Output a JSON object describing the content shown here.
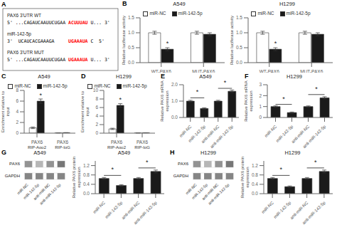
{
  "chart_data": [
    {
      "type": "sequence",
      "panel_label": "A",
      "rows": [
        {
          "label": "PAX6 3'UTR WT",
          "segments": [
            {
              "text": "5' ...CAGAUCAAUUCUGAA",
              "color": "#000000"
            },
            {
              "text": "ACUUUAU",
              "color": "#ff0000"
            },
            {
              "text": "U... 3'",
              "color": "#000000"
            }
          ]
        },
        {
          "label": "miR-142-5p",
          "segments": [
            {
              "text": "3'  UCAUCACGAAAGA",
              "color": "#000000"
            },
            {
              "text": "UGAAAUA",
              "color": "#ff0000"
            },
            {
              "text": "C  5'",
              "color": "#000000"
            }
          ]
        },
        {
          "label": "PAX6 3'UTR MUT",
          "segments": [
            {
              "text": "5' ...CAGAUCAAUUCUGAA",
              "color": "#000000"
            },
            {
              "text": "UGAAAUA",
              "color": "#ff0000"
            },
            {
              "text": "U... 3'",
              "color": "#000000"
            }
          ]
        }
      ]
    },
    {
      "type": "bar",
      "panel_label": "B",
      "title": "A549",
      "categories": [
        "WT-PAX6",
        "MUT-PAX6"
      ],
      "ylabel": "Relative luciferase activity",
      "series": [
        {
          "name": "miR-NC",
          "color": "#ffffff",
          "values": [
            1.0,
            1.0
          ],
          "errors": [
            0.05,
            0.05
          ]
        },
        {
          "name": "miR-142-5p",
          "color": "#1a1a1a",
          "values": [
            0.45,
            0.95
          ],
          "errors": [
            0.05,
            0.05
          ]
        }
      ],
      "ylim": [
        0,
        1.5
      ],
      "yticks": [
        {
          "value": 0,
          "label": "0.0"
        },
        0.5,
        {
          "value": 1,
          "label": "1.0"
        },
        1.5
      ],
      "legend": "top",
      "significance": [
        {
          "category": "WT-PAX6",
          "series": "miR-142-5p",
          "label": "*"
        }
      ]
    },
    {
      "type": "bar",
      "title": "H1299",
      "categories": [
        "WT-PAX6",
        "MUT-PAX6"
      ],
      "ylabel": "Relative luciferase activity",
      "series": [
        {
          "name": "miR-NC",
          "color": "#ffffff",
          "values": [
            1.0,
            1.0
          ],
          "errors": [
            0.05,
            0.05
          ]
        },
        {
          "name": "miR-142-5p",
          "color": "#1a1a1a",
          "values": [
            0.45,
            0.95
          ],
          "errors": [
            0.05,
            0.05
          ]
        }
      ],
      "ylim": [
        0,
        1.5
      ],
      "yticks": [
        {
          "value": 0,
          "label": "0.0"
        },
        0.5,
        {
          "value": 1,
          "label": "1.0"
        },
        1.5
      ],
      "legend": "top",
      "significance": [
        {
          "category": "WT-PAX6",
          "series": "miR-142-5p",
          "label": "*"
        }
      ]
    },
    {
      "type": "bar",
      "panel_label": "C",
      "title": "A549",
      "categories": [
        "PAX6",
        "PAX6"
      ],
      "group_labels": [
        "RIP-Ago2",
        "RIP-IgG"
      ],
      "ylabel": "Enrichment relative to\ninput",
      "series": [
        {
          "name": "miR-NC",
          "color": "#ffffff",
          "values": [
            1.0,
            0.05
          ],
          "errors": [
            0.15,
            0.01
          ]
        },
        {
          "name": "miR-142-5p",
          "color": "#1a1a1a",
          "values": [
            6.0,
            0.08
          ],
          "errors": [
            0.4,
            0.01
          ]
        }
      ],
      "ylim": [
        0,
        8
      ],
      "yticks": [
        0,
        2,
        4,
        6,
        8
      ],
      "legend": "top",
      "significance": [
        {
          "category": "PAX6",
          "series": "miR-142-5p",
          "label": "*"
        }
      ]
    },
    {
      "type": "bar",
      "panel_label": "D",
      "title": "H1299",
      "categories": [
        "PAX6",
        "PAX6"
      ],
      "group_labels": [
        "RIP-Ago2",
        "RIP-IgG"
      ],
      "ylabel": "Enrichment relative to\ninput",
      "series": [
        {
          "name": "miR-NC",
          "color": "#ffffff",
          "values": [
            1.0,
            0.05
          ],
          "errors": [
            0.15,
            0.01
          ]
        },
        {
          "name": "miR-142-5p",
          "color": "#1a1a1a",
          "values": [
            6.5,
            0.08
          ],
          "errors": [
            0.4,
            0.01
          ]
        }
      ],
      "ylim": [
        0,
        10
      ],
      "yticks": [
        0,
        2,
        4,
        6,
        8,
        10
      ],
      "legend": "top",
      "significance": [
        {
          "category": "PAX6",
          "series": "miR-142-5p",
          "label": "*"
        }
      ]
    },
    {
      "type": "bar",
      "panel_label": "E",
      "title": "A549",
      "categories": [
        "miR-NC",
        "miR-142-5p",
        "anti-miR-NC",
        "anti-miR-142-5p"
      ],
      "values": [
        1.0,
        0.55,
        1.0,
        1.6
      ],
      "errors": [
        0.05,
        0.04,
        0.05,
        0.08
      ],
      "color": "#1a1a1a",
      "ylabel": "Relative PAX6 mRNA\nexpression",
      "ylim": [
        0,
        2.0
      ],
      "yticks": [
        {
          "value": 0,
          "label": "0.0"
        },
        0.5,
        {
          "value": 1,
          "label": "1.0"
        },
        1.5,
        {
          "value": 2,
          "label": "2.0"
        }
      ],
      "significance": [
        {
          "from": "miR-NC",
          "to": "miR-142-5p",
          "y": 1.2,
          "label": "*"
        },
        {
          "from": "anti-miR-NC",
          "to": "anti-miR-142-5p",
          "y": 1.78,
          "label": "*"
        }
      ]
    },
    {
      "type": "bar",
      "panel_label": "F",
      "title": "H1299",
      "categories": [
        "miR-NC",
        "miR-142-5p",
        "anti-miR-NC",
        "anti-miR-142-5p"
      ],
      "values": [
        1.0,
        0.45,
        1.0,
        1.8
      ],
      "errors": [
        0.06,
        0.05,
        0.06,
        0.1
      ],
      "color": "#1a1a1a",
      "ylabel": "Relative PAX6 mRNA\nexpression",
      "ylim": [
        0,
        3.0
      ],
      "yticks": [
        0,
        1,
        2,
        3
      ],
      "significance": [
        {
          "from": "miR-NC",
          "to": "miR-142-5p",
          "y": 1.2,
          "label": "*"
        },
        {
          "from": "anti-miR-NC",
          "to": "anti-miR-142-5p",
          "y": 2.1,
          "label": "*"
        }
      ]
    },
    {
      "type": "blot",
      "panel_label": "G",
      "title": "A549",
      "categories": [
        "miR-NC",
        "miR-142-5p",
        "anti-miR-NC",
        "anti-miR-142-5p"
      ],
      "rows": [
        {
          "label": "PAX6",
          "intensities": [
            0.55,
            0.3,
            0.55,
            0.75
          ]
        },
        {
          "label": "GAPDH",
          "intensities": [
            0.65,
            0.65,
            0.65,
            0.65
          ]
        }
      ]
    },
    {
      "type": "bar",
      "title": "A549",
      "categories": [
        "miR-NC",
        "miR-142-5p",
        "anti-miR-NC",
        "anti-miR-142-5p"
      ],
      "values": [
        0.65,
        0.35,
        0.65,
        0.95
      ],
      "errors": [
        0.04,
        0.03,
        0.04,
        0.06
      ],
      "color": "#1a1a1a",
      "ylabel": "Relative PAX6 protein\nexpression",
      "ylim": [
        0,
        1.4
      ],
      "yticks": [
        {
          "value": 0,
          "label": "0.0"
        },
        0.4,
        0.8,
        1.2
      ],
      "significance": [
        {
          "from": "miR-NC",
          "to": "miR-142-5p",
          "y": 0.78,
          "label": "*"
        },
        {
          "from": "anti-miR-NC",
          "to": "anti-miR-142-5p",
          "y": 1.1,
          "label": "*"
        }
      ]
    },
    {
      "type": "blot",
      "panel_label": "H",
      "title": "H1299",
      "categories": [
        "miR-NC",
        "miR-142-5p",
        "anti-miR-NC",
        "anti-miR-142-5p"
      ],
      "rows": [
        {
          "label": "PAX6",
          "intensities": [
            0.55,
            0.3,
            0.55,
            0.75
          ]
        },
        {
          "label": "GAPDH",
          "intensities": [
            0.65,
            0.65,
            0.65,
            0.65
          ]
        }
      ]
    },
    {
      "type": "bar",
      "title": "H1299",
      "categories": [
        "miR-NC",
        "miR-142-5p",
        "anti-miR-NC",
        "anti-miR-142-5p"
      ],
      "values": [
        0.65,
        0.3,
        0.65,
        0.95
      ],
      "errors": [
        0.04,
        0.03,
        0.04,
        0.06
      ],
      "color": "#1a1a1a",
      "ylabel": "Relative PAX6 protein\nexpression",
      "ylim": [
        0,
        1.4
      ],
      "yticks": [
        {
          "value": 0,
          "label": "0.0"
        },
        0.4,
        0.8,
        1.2
      ],
      "significance": [
        {
          "from": "miR-NC",
          "to": "miR-142-5p",
          "y": 0.78,
          "label": "*"
        },
        {
          "from": "anti-miR-NC",
          "to": "anti-miR-142-5p",
          "y": 1.1,
          "label": "*"
        }
      ]
    }
  ]
}
